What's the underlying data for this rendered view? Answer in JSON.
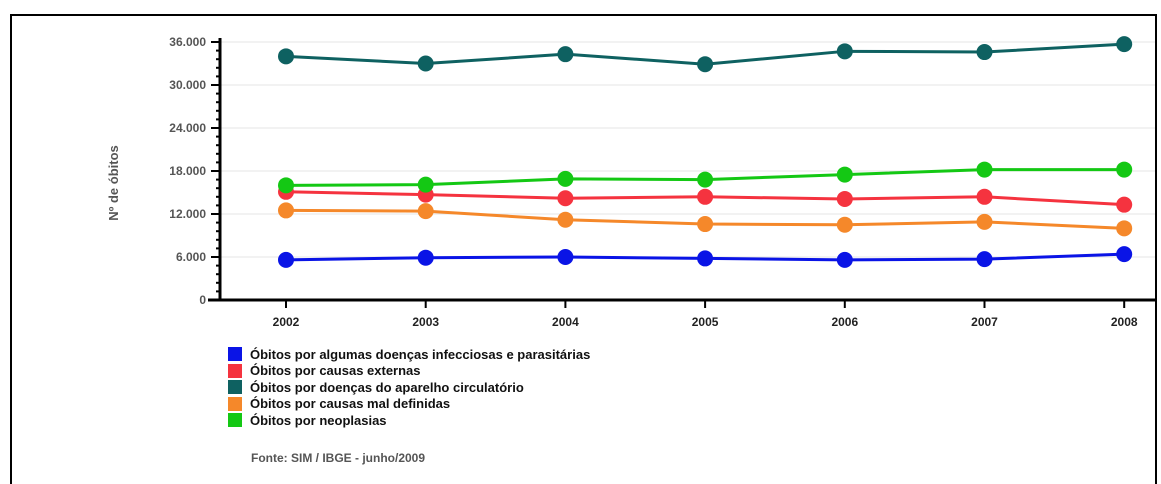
{
  "chart_data": {
    "type": "line",
    "categories": [
      "2002",
      "2003",
      "2004",
      "2005",
      "2006",
      "2007",
      "2008"
    ],
    "ylabel": "Nº de óbitos",
    "ylim": [
      0,
      36000
    ],
    "y_ticks": [
      0,
      6000,
      12000,
      18000,
      24000,
      30000,
      36000
    ],
    "y_tick_labels": [
      "0",
      "6.000",
      "12.000",
      "18.000",
      "24.000",
      "30.000",
      "36.000"
    ],
    "grid": true,
    "legend_position": "bottom-left",
    "series": [
      {
        "name": "Óbitos por algumas doenças infecciosas e parasitárias",
        "color": "#0a14e6",
        "values": [
          5600,
          5900,
          6000,
          5800,
          5600,
          5700,
          6400
        ]
      },
      {
        "name": "Óbitos por causas externas",
        "color": "#f5333f",
        "values": [
          15100,
          14700,
          14200,
          14400,
          14100,
          14400,
          13300
        ]
      },
      {
        "name": "Óbitos por doenças do aparelho circulatório",
        "color": "#0e6161",
        "values": [
          34000,
          33000,
          34300,
          32900,
          34700,
          34600,
          35700
        ]
      },
      {
        "name": "Óbitos por causas mal definidas",
        "color": "#f5882a",
        "values": [
          12500,
          12400,
          11200,
          10600,
          10500,
          10900,
          10000
        ]
      },
      {
        "name": "Óbitos por neoplasias",
        "color": "#14c814",
        "values": [
          16000,
          16100,
          16900,
          16800,
          17500,
          18200,
          18200
        ]
      }
    ]
  },
  "source": "Fonte: SIM / IBGE - junho/2009"
}
